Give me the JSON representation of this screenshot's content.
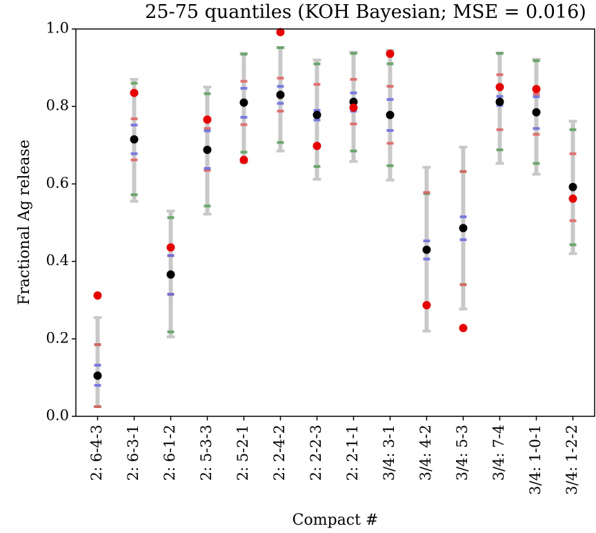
{
  "chart_data": {
    "type": "interval-dot",
    "title": "25-75 quantiles (KOH Bayesian; MSE = 0.016)",
    "y_label": "Fractional Ag release",
    "x_label": "Compact #",
    "categories": [
      "2: 6-4-3",
      "2: 6-3-1",
      "2: 6-1-2",
      "2: 5-3-3",
      "2: 5-2-1",
      "2: 2-4-2",
      "2: 2-2-3",
      "2: 2-1-1",
      "3/4: 3-1",
      "3/4: 4-2",
      "3/4: 5-3",
      "3/4: 7-4",
      "3/4: 1-0-1",
      "3/4: 1-2-2"
    ],
    "ylim": [
      0,
      1
    ],
    "yticks": [
      {
        "value": 0,
        "label": "0.0"
      },
      0.2,
      0.4,
      0.6,
      0.8,
      {
        "value": 1,
        "label": "1.0"
      }
    ],
    "intervals": [
      {
        "color": "#c8c8c8",
        "bar": true,
        "high": [
          0.255,
          0.87,
          0.53,
          0.85,
          0.937,
          0.952,
          0.92,
          0.94,
          0.945,
          0.643,
          0.695,
          0.938,
          0.922,
          0.762
        ],
        "low": [
          0.025,
          0.555,
          0.205,
          0.522,
          0.655,
          0.685,
          0.612,
          0.658,
          0.61,
          0.22,
          0.277,
          0.653,
          0.625,
          0.42
        ]
      },
      {
        "color": "#5a9e5a",
        "bar": false,
        "high": [
          0.185,
          0.86,
          0.513,
          0.833,
          0.935,
          0.952,
          0.91,
          0.937,
          0.91,
          0.575,
          0.632,
          0.937,
          0.918,
          0.74
        ],
        "low": [
          0.025,
          0.572,
          0.218,
          0.543,
          0.682,
          0.707,
          0.645,
          0.685,
          0.647,
          0.285,
          0.34,
          0.688,
          0.653,
          0.443
        ]
      },
      {
        "color": "#e06060",
        "bar": false,
        "high": [
          0.185,
          0.768,
          0.415,
          0.743,
          0.865,
          0.873,
          0.857,
          0.87,
          0.852,
          0.578,
          0.632,
          0.882,
          0.832,
          0.678
        ],
        "low": [
          0.025,
          0.662,
          0.315,
          0.635,
          0.753,
          0.788,
          0.7,
          0.755,
          0.705,
          0.283,
          0.34,
          0.74,
          0.728,
          0.505
        ]
      },
      {
        "color": "#6a6ae0",
        "bar": false,
        "high": [
          0.132,
          0.752,
          0.415,
          0.737,
          0.847,
          0.852,
          0.79,
          0.835,
          0.818,
          0.453,
          0.515,
          0.826,
          0.825,
          0.592
        ],
        "low": [
          0.08,
          0.678,
          0.315,
          0.64,
          0.772,
          0.808,
          0.765,
          0.788,
          0.738,
          0.406,
          0.456,
          0.803,
          0.743,
          0.592
        ]
      }
    ],
    "points": [
      {
        "color": "#000000",
        "values": [
          0.105,
          0.715,
          0.366,
          0.688,
          0.81,
          0.83,
          0.778,
          0.812,
          0.778,
          0.43,
          0.486,
          0.812,
          0.785,
          0.592
        ]
      },
      {
        "color": "#e60000",
        "values": [
          0.312,
          0.835,
          0.436,
          0.766,
          0.662,
          0.992,
          0.698,
          0.797,
          0.936,
          0.287,
          0.228,
          0.85,
          0.845,
          0.562
        ]
      }
    ]
  }
}
